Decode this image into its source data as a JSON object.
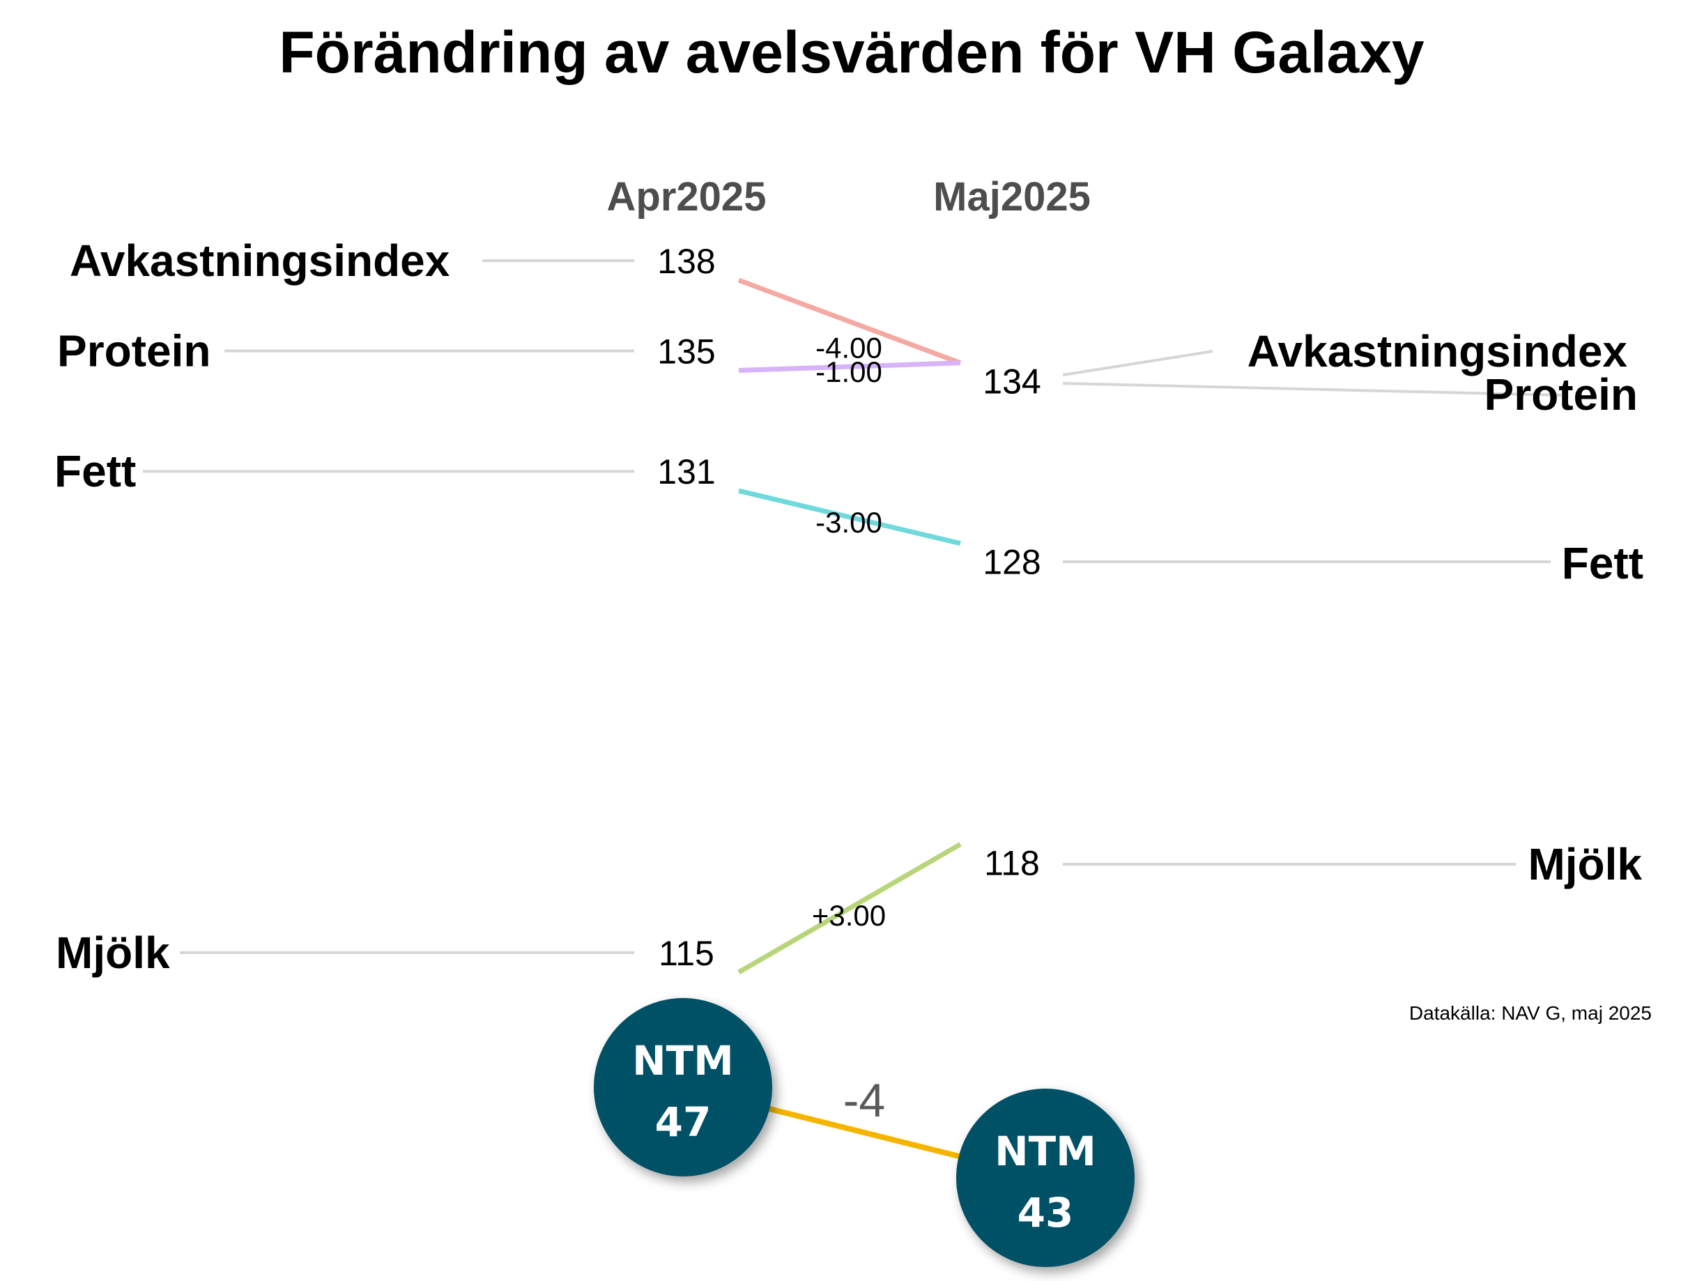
{
  "title": "Förändring av avelsvärden för VH Galaxy",
  "source": "Datakälla: NAV G, maj 2025",
  "chart_data": {
    "type": "line",
    "subtype": "slopegraph",
    "title": "Förändring av avelsvärden för VH Galaxy",
    "x": [
      "Apr2025",
      "Maj2025"
    ],
    "series": [
      {
        "name": "Avkastningsindex",
        "values": [
          138,
          134
        ],
        "change": "-4.00",
        "color": "#f4aaa3"
      },
      {
        "name": "Protein",
        "values": [
          135,
          134
        ],
        "change": "-1.00",
        "color": "#d7b3f8"
      },
      {
        "name": "Fett",
        "values": [
          131,
          128
        ],
        "change": "-3.00",
        "color": "#6fd9dc"
      },
      {
        "name": "Mjölk",
        "values": [
          115,
          118
        ],
        "change": "+3.00",
        "color": "#b8d579"
      }
    ],
    "ylim": [
      115,
      138
    ],
    "grid": false,
    "legend": "none"
  },
  "ntm": {
    "label": "NTM",
    "values": [
      47,
      43
    ],
    "change": "-4",
    "circle_color": "#035166",
    "line_color": "#f5b400",
    "delta_color": "#595959"
  },
  "colors": {
    "guide": "#d6d6d6",
    "period_label": "#4d4d4d"
  }
}
